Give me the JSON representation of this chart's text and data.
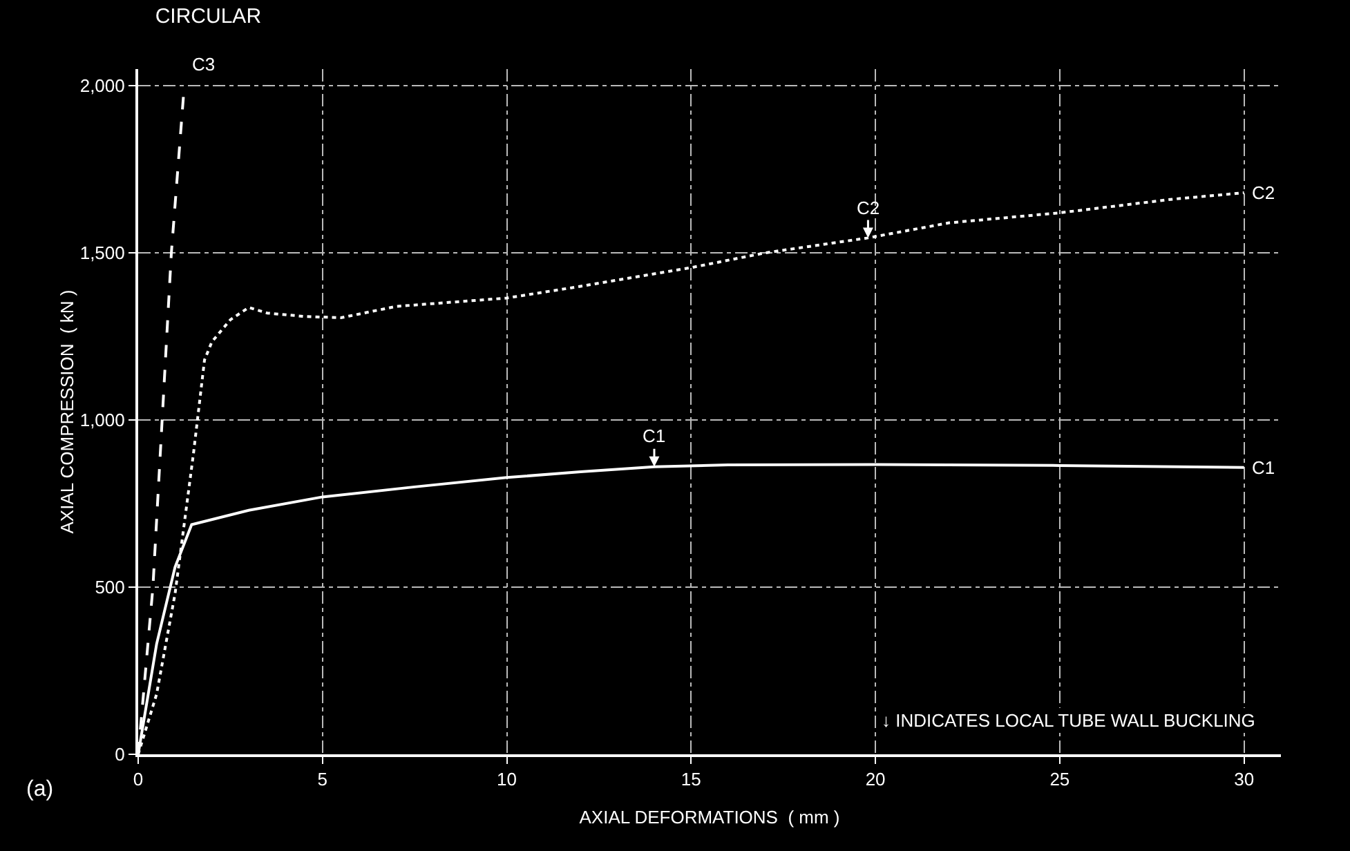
{
  "chart_data": {
    "type": "line",
    "title": "CIRCULAR",
    "xlabel": "AXIAL DEFORMATIONS  ( mm )",
    "ylabel": "AXIAL COMPRESSION  ( kN )",
    "xlim": [
      0,
      31
    ],
    "ylim": [
      0,
      2050
    ],
    "xticks": [
      0,
      5,
      10,
      15,
      20,
      25,
      30
    ],
    "yticks": [
      0,
      500,
      {
        "value": 1000,
        "label": "1,000"
      },
      {
        "value": 1500,
        "label": "1,500"
      },
      {
        "value": 2000,
        "label": "2,000"
      }
    ],
    "grid": true,
    "legend": false,
    "marker": "none",
    "series": [
      {
        "name": "C1",
        "color": "#ffffff",
        "line_style": "solid",
        "x": [
          0,
          0.5,
          1,
          1.45,
          3,
          5,
          7.5,
          10,
          12,
          14,
          16,
          20,
          25,
          30
        ],
        "values": [
          0,
          330,
          560,
          687,
          730,
          770,
          800,
          828,
          845,
          860,
          866,
          867,
          864,
          858
        ]
      },
      {
        "name": "C2",
        "color": "#ffffff",
        "line_style": "dotted",
        "x": [
          0,
          0.5,
          1,
          1.5,
          1.8,
          2,
          2.5,
          3,
          3.5,
          4.5,
          5.5,
          7,
          10,
          12,
          15,
          17,
          19.8,
          22,
          25,
          28,
          30
        ],
        "values": [
          0,
          180,
          480,
          900,
          1180,
          1234,
          1300,
          1337,
          1320,
          1310,
          1306,
          1340,
          1365,
          1400,
          1456,
          1500,
          1545,
          1590,
          1620,
          1660,
          1680
        ]
      },
      {
        "name": "C3",
        "color": "#ffffff",
        "line_style": "dashed",
        "x": [
          0,
          0.4,
          0.65,
          0.9,
          1.25
        ],
        "values": [
          0,
          500,
          1000,
          1500,
          2000
        ]
      }
    ],
    "annotations": [
      {
        "text": "C1",
        "x": 14,
        "y": 860
      },
      {
        "text": "C2",
        "x": 19.8,
        "y": 1545
      },
      "↓ INDICATES LOCAL TUBE WALL BUCKLING",
      "(a)"
    ]
  }
}
